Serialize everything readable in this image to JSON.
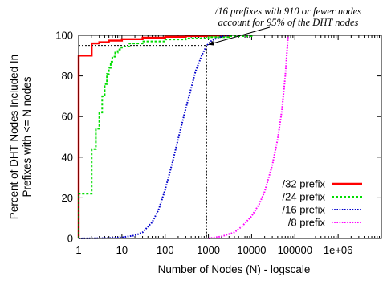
{
  "chart_data": {
    "type": "line",
    "xlabel": "Number of Nodes (N) - logscale",
    "ylabel_line1": "Percent of DHT Nodes Included In",
    "ylabel_line2": "Prefixes with <= N nodes",
    "xscale": "log",
    "xlim": [
      1,
      10000000
    ],
    "ylim": [
      0,
      100
    ],
    "x_ticks": [
      1,
      10,
      100,
      1000,
      10000,
      100000,
      1000000
    ],
    "x_tick_labels": [
      "1",
      "10",
      "100",
      "1000",
      "10000",
      "100000",
      "1e+06"
    ],
    "y_ticks": [
      0,
      20,
      40,
      60,
      80,
      100
    ],
    "y_tick_labels": [
      "0",
      "20",
      "40",
      "60",
      "80",
      "100"
    ],
    "grid": false,
    "legend_position": "bottom-right",
    "annotation": {
      "line1": "/16 prefixes with 910 or fewer nodes",
      "line2": "account for 95% of the DHT nodes",
      "point": [
        910,
        95
      ]
    },
    "series": [
      {
        "name": "/32 prefix",
        "color": "#ff0000",
        "style": "solid",
        "step": true,
        "points": [
          [
            1,
            0
          ],
          [
            1,
            90
          ],
          [
            2,
            90
          ],
          [
            2,
            96
          ],
          [
            3,
            96.6
          ],
          [
            5,
            97.4
          ],
          [
            10,
            98.1
          ],
          [
            30,
            98.8
          ],
          [
            100,
            99.3
          ],
          [
            300,
            99.7
          ],
          [
            1000,
            99.9
          ],
          [
            3000,
            100
          ]
        ]
      },
      {
        "name": "/24 prefix",
        "color": "#00dd00",
        "style": "dashed",
        "step": true,
        "points": [
          [
            1,
            0
          ],
          [
            1,
            22
          ],
          [
            2,
            22
          ],
          [
            2,
            44
          ],
          [
            2.5,
            44
          ],
          [
            2.5,
            54
          ],
          [
            3,
            54
          ],
          [
            3,
            62
          ],
          [
            3.5,
            62
          ],
          [
            3.5,
            70
          ],
          [
            4,
            70
          ],
          [
            4,
            76
          ],
          [
            4.5,
            76
          ],
          [
            4.5,
            81
          ],
          [
            5,
            84
          ],
          [
            5.5,
            87
          ],
          [
            6,
            89.5
          ],
          [
            7,
            91.5
          ],
          [
            8,
            93
          ],
          [
            9,
            94
          ],
          [
            10,
            94.5
          ],
          [
            15,
            96
          ],
          [
            30,
            97
          ],
          [
            100,
            98
          ],
          [
            300,
            98.5
          ],
          [
            1000,
            99.1
          ],
          [
            3000,
            99.6
          ],
          [
            10000,
            100
          ]
        ]
      },
      {
        "name": "/16 prefix",
        "color": "#0000cc",
        "style": "dotted",
        "step": false,
        "points": [
          [
            1,
            0
          ],
          [
            5,
            0.2
          ],
          [
            10,
            0.5
          ],
          [
            20,
            1.5
          ],
          [
            30,
            3
          ],
          [
            50,
            8
          ],
          [
            70,
            14
          ],
          [
            100,
            24
          ],
          [
            150,
            38
          ],
          [
            200,
            49
          ],
          [
            300,
            64
          ],
          [
            400,
            74
          ],
          [
            500,
            82
          ],
          [
            700,
            90
          ],
          [
            910,
            95
          ],
          [
            1200,
            97.5
          ],
          [
            2000,
            99.5
          ],
          [
            3000,
            100
          ]
        ]
      },
      {
        "name": "/8 prefix",
        "color": "#ff00ff",
        "style": "dotted",
        "step": false,
        "points": [
          [
            1000,
            0
          ],
          [
            2000,
            1
          ],
          [
            4000,
            3
          ],
          [
            6000,
            6
          ],
          [
            10000,
            11
          ],
          [
            15000,
            17
          ],
          [
            20000,
            23
          ],
          [
            30000,
            36
          ],
          [
            40000,
            49
          ],
          [
            50000,
            63
          ],
          [
            60000,
            80
          ],
          [
            70000,
            100
          ]
        ]
      }
    ]
  }
}
